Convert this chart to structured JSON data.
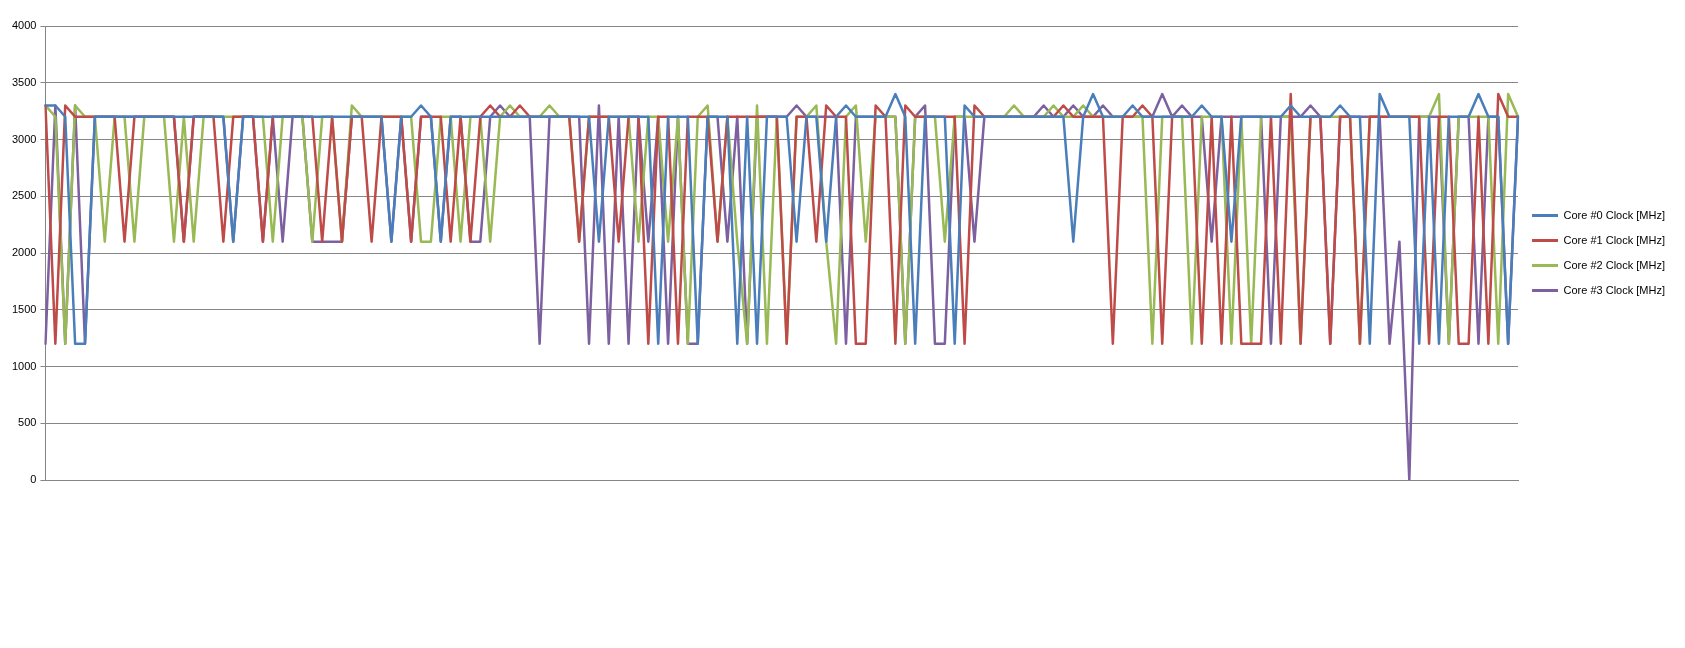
{
  "chart_data": {
    "type": "line",
    "categories": [
      null,
      null,
      null,
      null,
      null,
      null,
      null,
      null,
      null,
      null,
      null,
      null,
      null,
      null,
      null,
      null,
      null,
      null,
      null,
      null,
      null,
      null,
      null,
      null,
      null,
      null,
      null,
      null,
      null,
      null,
      null,
      null,
      null,
      null,
      null,
      null,
      null,
      null,
      null,
      null,
      null,
      null,
      null,
      null,
      null,
      null,
      null,
      null,
      null,
      null,
      null,
      null,
      null,
      null,
      null,
      null,
      null,
      null,
      null,
      null,
      null,
      null,
      null,
      null,
      null,
      null,
      null,
      null,
      null,
      null,
      null,
      null,
      null,
      null,
      null,
      null,
      null,
      null,
      null,
      null,
      null,
      null,
      null,
      null,
      null,
      null,
      null,
      null,
      null,
      null,
      null,
      null,
      null,
      null,
      null,
      null,
      null,
      null,
      null,
      null,
      null,
      null,
      null,
      null,
      null,
      null,
      null,
      null,
      null,
      null,
      null,
      null,
      null,
      null,
      null,
      null,
      null,
      null,
      null,
      null,
      null,
      null,
      null,
      null,
      null,
      null,
      null,
      null,
      null,
      null,
      null,
      null,
      null,
      null,
      null,
      null,
      null,
      null,
      null,
      null,
      null,
      null,
      null,
      null,
      null,
      null,
      null,
      null,
      null,
      null
    ],
    "series": [
      {
        "name": "Core #0 Clock [MHz]",
        "color": "#4a7ebb",
        "values": [
          3300,
          3300,
          3200,
          1200,
          1200,
          3200,
          3200,
          3200,
          3200,
          3200,
          3200,
          3200,
          3200,
          3200,
          3200,
          3200,
          3200,
          3200,
          3200,
          2100,
          3200,
          3200,
          3200,
          3200,
          3200,
          3200,
          3200,
          3200,
          3200,
          3200,
          3200,
          3200,
          3200,
          3200,
          3200,
          2100,
          3200,
          3200,
          3300,
          3200,
          2100,
          3200,
          3200,
          3200,
          3200,
          3200,
          3200,
          3200,
          3200,
          3200,
          3200,
          3200,
          3200,
          3200,
          3200,
          3200,
          2100,
          3200,
          3200,
          3200,
          3200,
          3200,
          1200,
          3200,
          3200,
          3200,
          1200,
          3200,
          3200,
          3200,
          1200,
          3200,
          1200,
          3200,
          3200,
          3200,
          2100,
          3200,
          3200,
          2100,
          3200,
          3300,
          3200,
          3200,
          3200,
          3200,
          3400,
          3200,
          1200,
          3200,
          3200,
          3200,
          1200,
          3300,
          3200,
          3200,
          3200,
          3200,
          3200,
          3200,
          3200,
          3200,
          3200,
          3200,
          2100,
          3200,
          3400,
          3200,
          3200,
          3200,
          3300,
          3200,
          3200,
          3200,
          3200,
          3200,
          3200,
          3300,
          3200,
          3200,
          2100,
          3200,
          3200,
          3200,
          3200,
          3200,
          3300,
          3200,
          3200,
          3200,
          3200,
          3300,
          3200,
          3200,
          1200,
          3400,
          3200,
          3200,
          3200,
          1200,
          3200,
          1200,
          3200,
          3200,
          3200,
          3400,
          3200,
          3200,
          1200,
          3200
        ]
      },
      {
        "name": "Core #1 Clock [MHz]",
        "color": "#be4b48",
        "values": [
          3300,
          1200,
          3300,
          3200,
          3200,
          3200,
          3200,
          3200,
          2100,
          3200,
          3200,
          3200,
          3200,
          3200,
          2100,
          3200,
          3200,
          3200,
          2100,
          3200,
          3200,
          3200,
          2100,
          3200,
          3200,
          3200,
          3200,
          3200,
          2100,
          3200,
          2100,
          3200,
          3200,
          2100,
          3200,
          3200,
          3200,
          2100,
          3200,
          3200,
          3200,
          2100,
          3200,
          2100,
          3200,
          3300,
          3200,
          3200,
          3300,
          3200,
          3200,
          3200,
          3200,
          3200,
          2100,
          3200,
          3200,
          3200,
          2100,
          3200,
          3200,
          1200,
          3200,
          3200,
          1200,
          3200,
          3200,
          3200,
          2100,
          3200,
          3200,
          3200,
          3200,
          3200,
          3200,
          1200,
          3200,
          3200,
          2100,
          3300,
          3200,
          3200,
          1200,
          1200,
          3300,
          3200,
          1200,
          3300,
          3200,
          3200,
          3200,
          3200,
          3200,
          1200,
          3300,
          3200,
          3200,
          3200,
          3200,
          3200,
          3200,
          3200,
          3200,
          3300,
          3200,
          3200,
          3200,
          3200,
          1200,
          3200,
          3200,
          3300,
          3200,
          1200,
          3200,
          3200,
          3200,
          1200,
          3200,
          1200,
          3200,
          1200,
          1200,
          1200,
          3200,
          1200,
          3400,
          1200,
          3200,
          3200,
          1200,
          3200,
          3200,
          1200,
          3200,
          3200,
          3200,
          3200,
          3200,
          3200,
          1200,
          3200,
          3200,
          1200,
          1200,
          3200,
          1200,
          3400,
          3200,
          3200
        ]
      },
      {
        "name": "Core #2 Clock [MHz]",
        "color": "#98b954",
        "values": [
          3300,
          3200,
          1200,
          3300,
          3200,
          3200,
          2100,
          3200,
          3200,
          2100,
          3200,
          3200,
          3200,
          2100,
          3200,
          2100,
          3200,
          3200,
          3200,
          3200,
          3200,
          3200,
          3200,
          2100,
          3200,
          3200,
          3200,
          2100,
          3200,
          3200,
          2100,
          3300,
          3200,
          3200,
          3200,
          3200,
          3200,
          3200,
          2100,
          2100,
          3200,
          3200,
          2100,
          3200,
          3200,
          2100,
          3200,
          3300,
          3200,
          3200,
          3200,
          3300,
          3200,
          3200,
          2100,
          3200,
          3200,
          3200,
          3200,
          3200,
          2100,
          3200,
          3200,
          2100,
          3200,
          1200,
          3200,
          3300,
          2100,
          3200,
          2100,
          1200,
          3300,
          1200,
          3200,
          1200,
          3200,
          3200,
          3300,
          2100,
          1200,
          3200,
          3300,
          2100,
          3200,
          3200,
          3200,
          1200,
          3200,
          3200,
          3200,
          2100,
          3200,
          3200,
          3200,
          3200,
          3200,
          3200,
          3300,
          3200,
          3200,
          3200,
          3300,
          3200,
          3200,
          3300,
          3200,
          3200,
          3200,
          3200,
          3200,
          3200,
          1200,
          3200,
          3200,
          3200,
          1200,
          3200,
          3200,
          3200,
          1200,
          3200,
          1200,
          3200,
          3200,
          3200,
          3200,
          1200,
          3200,
          3200,
          3200,
          3200,
          3200,
          1200,
          3200,
          3200,
          3200,
          3200,
          3200,
          3200,
          3200,
          3400,
          1200,
          3200,
          3200,
          3200,
          3200,
          1200,
          3400,
          3200
        ]
      },
      {
        "name": "Core #3 Clock [MHz]",
        "color": "#7d60a0",
        "values": [
          1200,
          3300,
          1200,
          3300,
          1200,
          3200,
          3200,
          3200,
          3200,
          3200,
          3200,
          3200,
          3200,
          3200,
          2100,
          3200,
          3200,
          3200,
          3200,
          2100,
          3200,
          3200,
          2100,
          3200,
          2100,
          3200,
          3200,
          2100,
          2100,
          2100,
          2100,
          3200,
          3200,
          3200,
          3200,
          2100,
          3200,
          2100,
          3200,
          3200,
          2100,
          3200,
          3200,
          2100,
          2100,
          3200,
          3300,
          3200,
          3200,
          3200,
          1200,
          3200,
          3200,
          3200,
          3200,
          1200,
          3300,
          1200,
          3200,
          1200,
          3200,
          2100,
          3200,
          1200,
          3200,
          1200,
          1200,
          3200,
          3200,
          2100,
          3200,
          1200,
          3200,
          3200,
          3200,
          3200,
          3300,
          3200,
          3200,
          3200,
          3200,
          1200,
          3200,
          3200,
          3200,
          3200,
          3200,
          1200,
          3200,
          3300,
          1200,
          1200,
          3200,
          3200,
          2100,
          3200,
          3200,
          3200,
          3200,
          3200,
          3200,
          3300,
          3200,
          3200,
          3300,
          3200,
          3200,
          3300,
          3200,
          3200,
          3200,
          3200,
          3200,
          3400,
          3200,
          3300,
          3200,
          3200,
          2100,
          3200,
          3200,
          3200,
          3200,
          3200,
          1200,
          3200,
          3200,
          3200,
          3300,
          3200,
          1200,
          3200,
          3200,
          3200,
          3200,
          3200,
          1200,
          2100,
          0,
          3200,
          3200,
          3200,
          1200,
          3200,
          3200,
          1200,
          3200,
          3200,
          1200,
          3200
        ]
      }
    ],
    "ylim": [
      0,
      4000
    ],
    "yticks": [
      0,
      500,
      1000,
      1500,
      2000,
      2500,
      3000,
      3500,
      4000
    ],
    "grid": "y",
    "legend": "right",
    "tick_labels": "y",
    "marker": "none",
    "line_style": "solid"
  }
}
